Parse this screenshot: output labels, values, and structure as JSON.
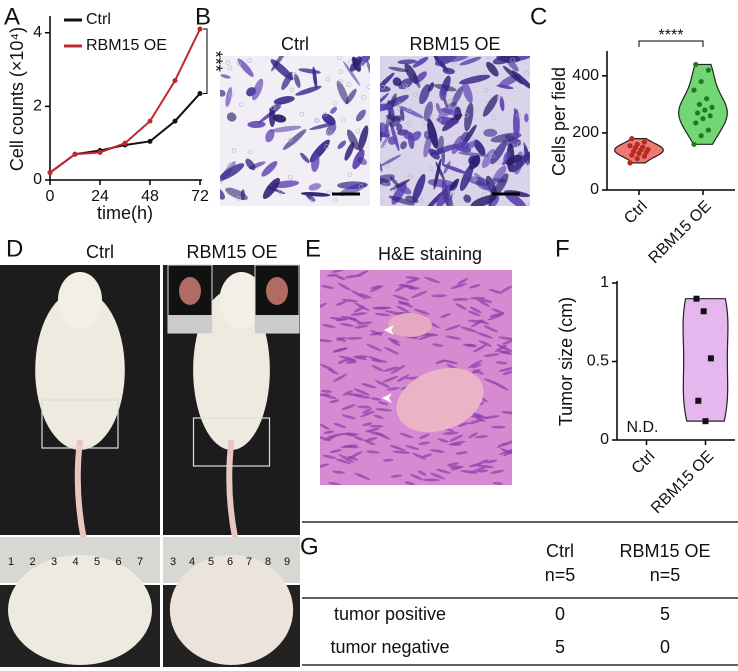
{
  "panel_labels": [
    "A",
    "B",
    "C",
    "D",
    "E",
    "F",
    "G"
  ],
  "chart_data": [
    {
      "type": "line",
      "x": [
        0,
        12,
        24,
        36,
        48,
        60,
        72
      ],
      "xlim": [
        0,
        72
      ],
      "xticks": [
        0,
        24,
        48,
        72
      ],
      "ylim": [
        0,
        4.4
      ],
      "yticks": [
        0,
        2,
        4
      ],
      "xlabel": "time(h)",
      "ylabel": "Cell counts (×10⁴)",
      "annotation": "***",
      "legend": "upper left",
      "series": [
        {
          "name": "Ctrl",
          "color": "#111111",
          "values": [
            0.2,
            0.7,
            0.8,
            0.95,
            1.05,
            1.6,
            2.35
          ]
        },
        {
          "name": "RBM15 OE",
          "color": "#c0282d",
          "values": [
            0.2,
            0.7,
            0.75,
            1.0,
            1.6,
            2.7,
            4.1
          ]
        }
      ]
    },
    {
      "type": "violin",
      "categories": [
        "Ctrl",
        "RBM15 OE"
      ],
      "ylim": [
        0,
        480
      ],
      "yticks": [
        0,
        200,
        400
      ],
      "ylabel": "Cells per field",
      "annotation": "****",
      "groups": [
        {
          "color": "#ef7a73",
          "point_color": "#b52a22",
          "values": [
            95,
            110,
            118,
            122,
            128,
            132,
            135,
            140,
            142,
            148,
            150,
            155,
            160,
            168,
            180
          ]
        },
        {
          "color": "#72d672",
          "point_color": "#1f7a1f",
          "values": [
            160,
            190,
            210,
            235,
            250,
            260,
            270,
            280,
            290,
            300,
            320,
            350,
            380,
            420,
            440
          ]
        }
      ]
    },
    {
      "type": "violin",
      "categories": [
        "Ctrl",
        "RBM15 OE"
      ],
      "ylim": [
        0,
        1
      ],
      "yticks": [
        0,
        0.5,
        1
      ],
      "ylabel": "Tumor size (cm)",
      "annotation": "N.D.",
      "groups": [
        {
          "values": []
        },
        {
          "color": "#e6b6ee",
          "point_color": "#111111",
          "values": [
            0.9,
            0.82,
            0.52,
            0.25,
            0.12
          ]
        }
      ]
    }
  ],
  "images": {
    "B": [
      "Ctrl",
      "RBM15 OE"
    ],
    "D": [
      "Ctrl",
      "RBM15 OE"
    ],
    "D_rulers": [
      [
        1,
        2,
        3,
        4,
        5,
        6,
        7
      ],
      [
        3,
        4,
        5,
        6,
        7,
        8,
        9
      ]
    ],
    "E": "H&E staining"
  },
  "table": {
    "columns": [
      {
        "name": "Ctrl",
        "n": "n=5"
      },
      {
        "name": "RBM15 OE",
        "n": "n=5"
      }
    ],
    "rows": [
      [
        "tumor positive",
        0,
        5
      ],
      [
        "tumor negative",
        5,
        0
      ]
    ]
  }
}
